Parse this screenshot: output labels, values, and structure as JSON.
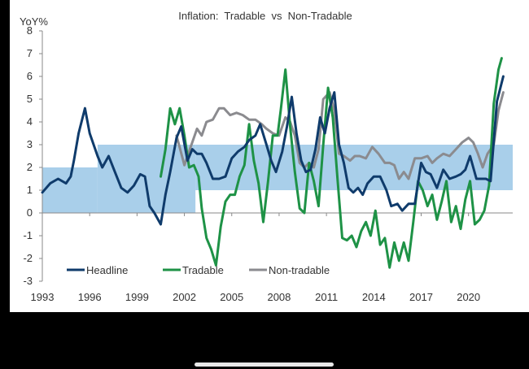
{
  "chart_data": {
    "type": "line",
    "title": "Inflation:  Tradable  vs  Non-Tradable",
    "ylabel": "YoY%",
    "xlabel": "",
    "ylim": [
      -3,
      8
    ],
    "xlim": [
      1993,
      2022.8
    ],
    "yticks": [
      -3,
      -2,
      -1,
      0,
      1,
      2,
      3,
      4,
      5,
      6,
      7,
      8
    ],
    "xticks": [
      1993,
      1996,
      1999,
      2002,
      2005,
      2008,
      2011,
      2014,
      2017,
      2020
    ],
    "target_band": [
      {
        "x0": 1993,
        "x1": 1996.5,
        "y0": 0,
        "y1": 2
      },
      {
        "x0": 1996.5,
        "x1": 2002.7,
        "y0": 0,
        "y1": 3
      },
      {
        "x0": 2002.7,
        "x1": 2022.8,
        "y0": 1,
        "y1": 3
      }
    ],
    "band_color": "#a9cfea",
    "grid": false,
    "legend_position": "bottom-left",
    "series": [
      {
        "name": "Headline",
        "color": "#0f3b6b",
        "points": [
          [
            1993,
            0.9
          ],
          [
            1993.5,
            1.3
          ],
          [
            1994,
            1.5
          ],
          [
            1994.5,
            1.3
          ],
          [
            1994.8,
            1.6
          ],
          [
            1995,
            2.3
          ],
          [
            1995.3,
            3.5
          ],
          [
            1995.7,
            4.6
          ],
          [
            1996,
            3.5
          ],
          [
            1996.5,
            2.5
          ],
          [
            1996.8,
            2.0
          ],
          [
            1997.2,
            2.5
          ],
          [
            1997.6,
            1.8
          ],
          [
            1998,
            1.1
          ],
          [
            1998.4,
            0.9
          ],
          [
            1998.8,
            1.2
          ],
          [
            1999.2,
            1.7
          ],
          [
            1999.5,
            1.6
          ],
          [
            1999.8,
            0.3
          ],
          [
            2000.1,
            0.0
          ],
          [
            2000.5,
            -0.5
          ],
          [
            2000.8,
            0.8
          ],
          [
            2001.1,
            1.8
          ],
          [
            2001.5,
            3.3
          ],
          [
            2001.8,
            3.8
          ],
          [
            2002.2,
            2.3
          ],
          [
            2002.5,
            2.8
          ],
          [
            2002.8,
            2.6
          ],
          [
            2003.1,
            2.6
          ],
          [
            2003.4,
            2.2
          ],
          [
            2003.8,
            1.5
          ],
          [
            2004.2,
            1.5
          ],
          [
            2004.6,
            1.6
          ],
          [
            2005,
            2.4
          ],
          [
            2005.4,
            2.7
          ],
          [
            2005.8,
            2.9
          ],
          [
            2006.1,
            3.2
          ],
          [
            2006.5,
            3.4
          ],
          [
            2006.8,
            3.9
          ],
          [
            2007.2,
            3.0
          ],
          [
            2007.5,
            2.3
          ],
          [
            2007.8,
            1.8
          ],
          [
            2008.2,
            2.7
          ],
          [
            2008.5,
            3.8
          ],
          [
            2008.8,
            5.1
          ],
          [
            2009.1,
            3.5
          ],
          [
            2009.4,
            2.3
          ],
          [
            2009.7,
            1.8
          ],
          [
            2010,
            1.9
          ],
          [
            2010.3,
            2.8
          ],
          [
            2010.6,
            4.2
          ],
          [
            2010.9,
            3.5
          ],
          [
            2011.2,
            4.6
          ],
          [
            2011.5,
            5.3
          ],
          [
            2011.8,
            3.0
          ],
          [
            2012.1,
            2.2
          ],
          [
            2012.4,
            1.1
          ],
          [
            2012.7,
            0.9
          ],
          [
            2013,
            1.1
          ],
          [
            2013.3,
            0.8
          ],
          [
            2013.6,
            1.3
          ],
          [
            2014,
            1.6
          ],
          [
            2014.4,
            1.6
          ],
          [
            2014.8,
            1.0
          ],
          [
            2015.1,
            0.3
          ],
          [
            2015.5,
            0.4
          ],
          [
            2015.8,
            0.1
          ],
          [
            2016.2,
            0.4
          ],
          [
            2016.6,
            0.4
          ],
          [
            2017,
            2.2
          ],
          [
            2017.3,
            1.8
          ],
          [
            2017.6,
            1.7
          ],
          [
            2018,
            1.1
          ],
          [
            2018.4,
            1.9
          ],
          [
            2018.8,
            1.5
          ],
          [
            2019.2,
            1.6
          ],
          [
            2019.5,
            1.7
          ],
          [
            2019.8,
            1.9
          ],
          [
            2020.1,
            2.5
          ],
          [
            2020.5,
            1.5
          ],
          [
            2020.8,
            1.5
          ],
          [
            2021.1,
            1.5
          ],
          [
            2021.4,
            1.4
          ],
          [
            2021.8,
            4.9
          ],
          [
            2022.2,
            6.0
          ]
        ]
      },
      {
        "name": "Tradable",
        "color": "#1e9246",
        "points": [
          [
            2000.5,
            1.6
          ],
          [
            2000.8,
            2.8
          ],
          [
            2001.1,
            4.6
          ],
          [
            2001.4,
            3.9
          ],
          [
            2001.7,
            4.6
          ],
          [
            2002,
            3.4
          ],
          [
            2002.3,
            2.0
          ],
          [
            2002.6,
            2.1
          ],
          [
            2002.9,
            1.6
          ],
          [
            2003.1,
            0.2
          ],
          [
            2003.4,
            -1.1
          ],
          [
            2003.7,
            -1.6
          ],
          [
            2004,
            -2.3
          ],
          [
            2004.3,
            -0.6
          ],
          [
            2004.6,
            0.5
          ],
          [
            2004.9,
            0.8
          ],
          [
            2005.2,
            0.8
          ],
          [
            2005.5,
            1.6
          ],
          [
            2005.8,
            2.1
          ],
          [
            2006.1,
            3.9
          ],
          [
            2006.4,
            2.3
          ],
          [
            2006.7,
            1.3
          ],
          [
            2007,
            -0.4
          ],
          [
            2007.3,
            1.4
          ],
          [
            2007.6,
            3.4
          ],
          [
            2007.9,
            3.4
          ],
          [
            2008.1,
            4.5
          ],
          [
            2008.4,
            6.3
          ],
          [
            2008.7,
            3.8
          ],
          [
            2009,
            1.8
          ],
          [
            2009.3,
            0.2
          ],
          [
            2009.6,
            0.0
          ],
          [
            2009.9,
            2.2
          ],
          [
            2010.2,
            1.4
          ],
          [
            2010.5,
            0.3
          ],
          [
            2010.8,
            3.0
          ],
          [
            2011.1,
            5.5
          ],
          [
            2011.4,
            4.2
          ],
          [
            2011.7,
            1.5
          ],
          [
            2012,
            -1.1
          ],
          [
            2012.3,
            -1.2
          ],
          [
            2012.6,
            -1.0
          ],
          [
            2012.9,
            -1.5
          ],
          [
            2013.2,
            -0.8
          ],
          [
            2013.5,
            -0.4
          ],
          [
            2013.8,
            -1.0
          ],
          [
            2014.1,
            0.1
          ],
          [
            2014.4,
            -1.4
          ],
          [
            2014.7,
            -1.1
          ],
          [
            2015,
            -2.4
          ],
          [
            2015.3,
            -1.3
          ],
          [
            2015.6,
            -2.1
          ],
          [
            2015.9,
            -1.3
          ],
          [
            2016.2,
            -2.1
          ],
          [
            2016.5,
            -0.4
          ],
          [
            2016.8,
            1.4
          ],
          [
            2017.1,
            1.0
          ],
          [
            2017.4,
            0.3
          ],
          [
            2017.7,
            0.8
          ],
          [
            2018,
            -0.3
          ],
          [
            2018.3,
            0.5
          ],
          [
            2018.6,
            1.4
          ],
          [
            2018.9,
            -0.4
          ],
          [
            2019.2,
            0.3
          ],
          [
            2019.5,
            -0.7
          ],
          [
            2019.8,
            0.6
          ],
          [
            2020.1,
            1.4
          ],
          [
            2020.4,
            -0.5
          ],
          [
            2020.7,
            -0.3
          ],
          [
            2021,
            0.1
          ],
          [
            2021.3,
            1.2
          ],
          [
            2021.6,
            4.8
          ],
          [
            2021.9,
            6.3
          ],
          [
            2022.1,
            6.8
          ]
        ]
      },
      {
        "name": "Non-tradable",
        "color": "#8b8b8f",
        "points": [
          [
            2001.5,
            3.4
          ],
          [
            2002,
            2.1
          ],
          [
            2002.4,
            2.9
          ],
          [
            2002.8,
            3.7
          ],
          [
            2003.1,
            3.4
          ],
          [
            2003.4,
            4.0
          ],
          [
            2003.8,
            4.1
          ],
          [
            2004.2,
            4.6
          ],
          [
            2004.5,
            4.6
          ],
          [
            2004.9,
            4.3
          ],
          [
            2005.3,
            4.4
          ],
          [
            2005.7,
            4.3
          ],
          [
            2006.1,
            4.1
          ],
          [
            2006.5,
            4.1
          ],
          [
            2006.9,
            3.9
          ],
          [
            2007.2,
            3.7
          ],
          [
            2007.6,
            3.5
          ],
          [
            2008,
            3.4
          ],
          [
            2008.4,
            4.2
          ],
          [
            2008.7,
            4.0
          ],
          [
            2009,
            3.4
          ],
          [
            2009.3,
            2.2
          ],
          [
            2009.6,
            2.0
          ],
          [
            2009.9,
            2.2
          ],
          [
            2010.2,
            2.0
          ],
          [
            2010.5,
            2.8
          ],
          [
            2010.8,
            5.0
          ],
          [
            2011.2,
            5.3
          ],
          [
            2011.5,
            4.5
          ],
          [
            2011.8,
            2.6
          ],
          [
            2012.1,
            2.5
          ],
          [
            2012.5,
            2.3
          ],
          [
            2012.8,
            2.5
          ],
          [
            2013.1,
            2.5
          ],
          [
            2013.5,
            2.4
          ],
          [
            2013.9,
            2.9
          ],
          [
            2014.3,
            2.6
          ],
          [
            2014.7,
            2.2
          ],
          [
            2015,
            2.2
          ],
          [
            2015.3,
            2.1
          ],
          [
            2015.6,
            1.5
          ],
          [
            2015.9,
            1.8
          ],
          [
            2016.2,
            1.5
          ],
          [
            2016.6,
            2.4
          ],
          [
            2017,
            2.4
          ],
          [
            2017.4,
            2.5
          ],
          [
            2017.7,
            2.2
          ],
          [
            2018,
            2.4
          ],
          [
            2018.4,
            2.6
          ],
          [
            2018.8,
            2.5
          ],
          [
            2019.2,
            2.8
          ],
          [
            2019.6,
            3.1
          ],
          [
            2020,
            3.3
          ],
          [
            2020.3,
            3.1
          ],
          [
            2020.6,
            2.6
          ],
          [
            2020.9,
            2.0
          ],
          [
            2021.2,
            2.6
          ],
          [
            2021.6,
            3.0
          ],
          [
            2021.9,
            4.5
          ],
          [
            2022.2,
            5.3
          ]
        ]
      }
    ]
  }
}
